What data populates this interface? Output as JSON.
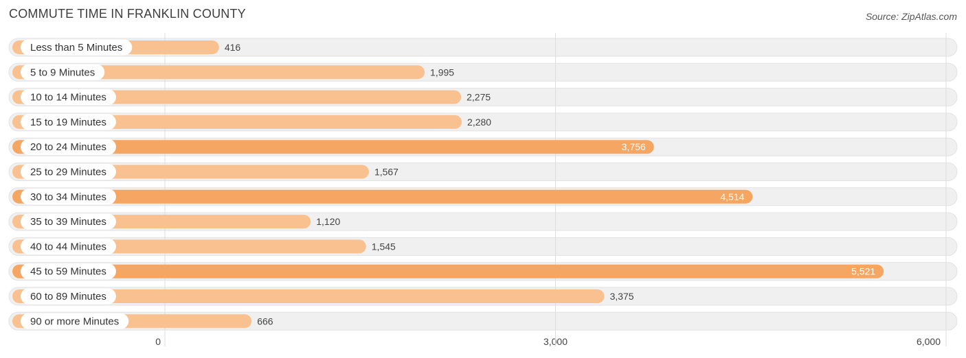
{
  "header": {
    "title": "COMMUTE TIME IN FRANKLIN COUNTY",
    "source": "Source: ZipAtlas.com"
  },
  "colors": {
    "bar_light": "#F9C18F",
    "bar_dark": "#F5A662",
    "row_bg": "#F0F0F0",
    "gridline": "#DDDDDD"
  },
  "chart_data": {
    "type": "bar",
    "orientation": "horizontal",
    "title": "COMMUTE TIME IN FRANKLIN COUNTY",
    "categories": [
      "Less than 5 Minutes",
      "5 to 9 Minutes",
      "10 to 14 Minutes",
      "15 to 19 Minutes",
      "20 to 24 Minutes",
      "25 to 29 Minutes",
      "30 to 34 Minutes",
      "35 to 39 Minutes",
      "40 to 44 Minutes",
      "45 to 59 Minutes",
      "60 to 89 Minutes",
      "90 or more Minutes"
    ],
    "values": [
      416,
      1995,
      2275,
      2280,
      3756,
      1567,
      4514,
      1120,
      1545,
      5521,
      3375,
      666
    ],
    "value_labels": [
      "416",
      "1,995",
      "2,275",
      "2,280",
      "3,756",
      "1,567",
      "4,514",
      "1,120",
      "1,545",
      "5,521",
      "3,375",
      "666"
    ],
    "xlim": [
      0,
      6000
    ],
    "xticks": [
      0,
      3000,
      6000
    ],
    "xtick_labels": [
      "0",
      "3,000",
      "6,000"
    ],
    "xlabel": "",
    "ylabel": "",
    "grid": true
  }
}
